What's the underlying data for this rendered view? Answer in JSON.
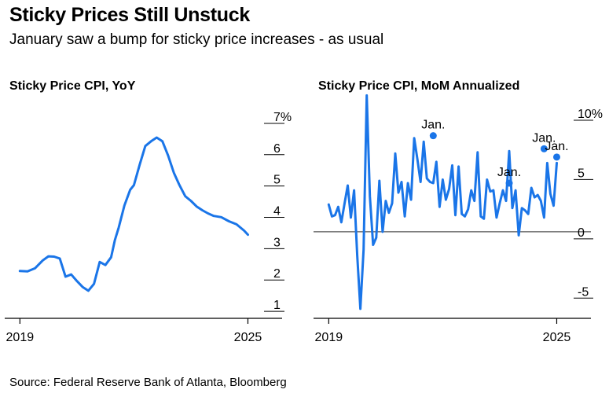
{
  "header": {
    "title": "Sticky Prices Still Unstuck",
    "subtitle": "January saw a bump for sticky price increases - as usual"
  },
  "footer": {
    "source": "Source: Federal Reserve Bank of Atlanta, Bloomberg"
  },
  "colors": {
    "line": "#1a75e8",
    "axis": "#000000",
    "zero_line": "#555555"
  },
  "chart_data": [
    {
      "type": "line",
      "title": "Sticky Price CPI, YoY",
      "xlabel": "",
      "ylabel": "",
      "x_ticks": [
        {
          "value": 2019,
          "label": "2019"
        },
        {
          "value": 2025,
          "label": "2025"
        }
      ],
      "y_ticks": [
        {
          "value": 1,
          "label": "1"
        },
        {
          "value": 2,
          "label": "2"
        },
        {
          "value": 3,
          "label": "3"
        },
        {
          "value": 4,
          "label": "4"
        },
        {
          "value": 5,
          "label": "5"
        },
        {
          "value": 6,
          "label": "6"
        },
        {
          "value": 7,
          "label": "7%"
        }
      ],
      "xlim": [
        2018.6,
        2025.9
      ],
      "ylim": [
        0.55,
        7.4
      ],
      "grid": false,
      "series": [
        {
          "x": [
            2019.0,
            2019.2,
            2019.4,
            2019.6,
            2019.75,
            2019.9,
            2020.05,
            2020.2,
            2020.35,
            2020.5,
            2020.65,
            2020.8,
            2020.95,
            2021.1,
            2021.25,
            2021.4,
            2021.5,
            2021.6,
            2021.75,
            2021.9,
            2022.0,
            2022.15,
            2022.3,
            2022.45,
            2022.6,
            2022.75,
            2022.9,
            2023.05,
            2023.2,
            2023.35,
            2023.5,
            2023.65,
            2023.8,
            2023.95,
            2024.1,
            2024.3,
            2024.5,
            2024.7,
            2024.9,
            2025.0
          ],
          "y": [
            2.06,
            2.05,
            2.15,
            2.4,
            2.53,
            2.52,
            2.46,
            1.88,
            1.95,
            1.74,
            1.55,
            1.43,
            1.65,
            2.35,
            2.25,
            2.5,
            3.05,
            3.45,
            4.15,
            4.65,
            4.8,
            5.45,
            6.05,
            6.2,
            6.32,
            6.2,
            5.75,
            5.2,
            4.8,
            4.45,
            4.3,
            4.12,
            4.0,
            3.9,
            3.82,
            3.78,
            3.65,
            3.55,
            3.35,
            3.22
          ]
        }
      ]
    },
    {
      "type": "line",
      "title": "Sticky Price CPI, MoM Annualized",
      "xlabel": "",
      "ylabel": "",
      "x_ticks": [
        {
          "value": 2019,
          "label": "2019"
        },
        {
          "value": 2025,
          "label": "2025"
        }
      ],
      "y_ticks": [
        {
          "value": -5,
          "label": "-5"
        },
        {
          "value": 0,
          "label": "0"
        },
        {
          "value": 5,
          "label": "5"
        },
        {
          "value": 10,
          "label": "10%"
        }
      ],
      "xlim": [
        2018.6,
        2025.9
      ],
      "ylim": [
        -7.3,
        10.0
      ],
      "zero_line": true,
      "grid": false,
      "series": [
        {
          "x": [
            2019.0,
            2019.083,
            2019.167,
            2019.25,
            2019.333,
            2019.417,
            2019.5,
            2019.583,
            2019.667,
            2019.75,
            2019.833,
            2019.917,
            2020.0,
            2020.083,
            2020.167,
            2020.25,
            2020.333,
            2020.417,
            2020.5,
            2020.583,
            2020.667,
            2020.75,
            2020.833,
            2020.917,
            2021.0,
            2021.083,
            2021.167,
            2021.25,
            2021.333,
            2021.417,
            2021.5,
            2021.583,
            2021.667,
            2021.75,
            2021.833,
            2021.917,
            2022.0,
            2022.083,
            2022.167,
            2022.25,
            2022.333,
            2022.417,
            2022.5,
            2022.583,
            2022.667,
            2022.75,
            2022.833,
            2022.917,
            2023.0,
            2023.083,
            2023.167,
            2023.25,
            2023.333,
            2023.417,
            2023.5,
            2023.583,
            2023.667,
            2023.75,
            2023.833,
            2023.917,
            2024.0,
            2024.083,
            2024.167,
            2024.25,
            2024.333,
            2024.417,
            2024.5,
            2024.583,
            2024.667,
            2024.75,
            2024.833,
            2024.917,
            2025.0
          ],
          "y": [
            2.3,
            1.3,
            1.4,
            2.1,
            0.8,
            2.4,
            3.9,
            1.2,
            3.5,
            -2.0,
            -6.5,
            -1.5,
            11.5,
            3.0,
            -1.1,
            -0.5,
            4.3,
            0.0,
            2.6,
            1.6,
            2.4,
            6.6,
            3.3,
            4.2,
            1.3,
            4.1,
            2.7,
            7.9,
            6.1,
            4.2,
            7.6,
            4.5,
            4.2,
            4.1,
            5.9,
            2.1,
            4.4,
            2.7,
            3.6,
            5.6,
            1.4,
            5.5,
            1.5,
            1.3,
            1.9,
            3.5,
            2.6,
            6.7,
            1.3,
            1.1,
            4.4,
            3.4,
            3.5,
            1.2,
            2.4,
            3.5,
            2.6,
            6.8,
            2.0,
            3.5,
            -0.3,
            2.0,
            1.8,
            1.5,
            3.7,
            2.9,
            3.1,
            2.6,
            1.2,
            5.8,
            3.2,
            2.2,
            5.8
          ]
        }
      ],
      "markers": [
        {
          "x": 2021.75,
          "y": 8.1,
          "label": "Jan."
        },
        {
          "x": 2023.75,
          "y": 4.1,
          "label": "Jan."
        },
        {
          "x": 2024.667,
          "y": 7.0,
          "label": "Jan."
        },
        {
          "x": 2025.0,
          "y": 6.3,
          "label": "Jan."
        }
      ]
    }
  ]
}
